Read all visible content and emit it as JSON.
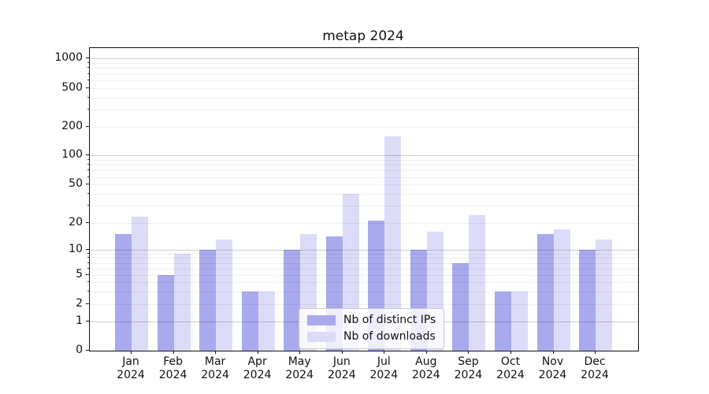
{
  "chart_data": {
    "type": "bar",
    "title": "metap 2024",
    "categories": [
      "Jan 2024",
      "Feb 2024",
      "Mar 2024",
      "Apr 2024",
      "May 2024",
      "Jun 2024",
      "Jul 2024",
      "Aug 2024",
      "Sep 2024",
      "Oct 2024",
      "Nov 2024",
      "Dec 2024"
    ],
    "series": [
      {
        "name": "Nb of distinct IPs",
        "color": "#a9a9ee",
        "values": [
          15,
          5,
          10,
          3,
          10,
          14,
          21,
          10,
          7,
          3,
          15,
          10
        ]
      },
      {
        "name": "Nb of downloads",
        "color": "#dcdcf8",
        "values": [
          23,
          9,
          13,
          3,
          15,
          40,
          160,
          16,
          24,
          3,
          17,
          13
        ]
      }
    ],
    "xlabel": "",
    "ylabel": "",
    "yscale": "symlog",
    "y_ticks": [
      0,
      1,
      2,
      5,
      10,
      20,
      50,
      100,
      200,
      500,
      1000
    ],
    "ylim": [
      0,
      1400
    ],
    "grid": "both",
    "legend_position": "lower center"
  }
}
